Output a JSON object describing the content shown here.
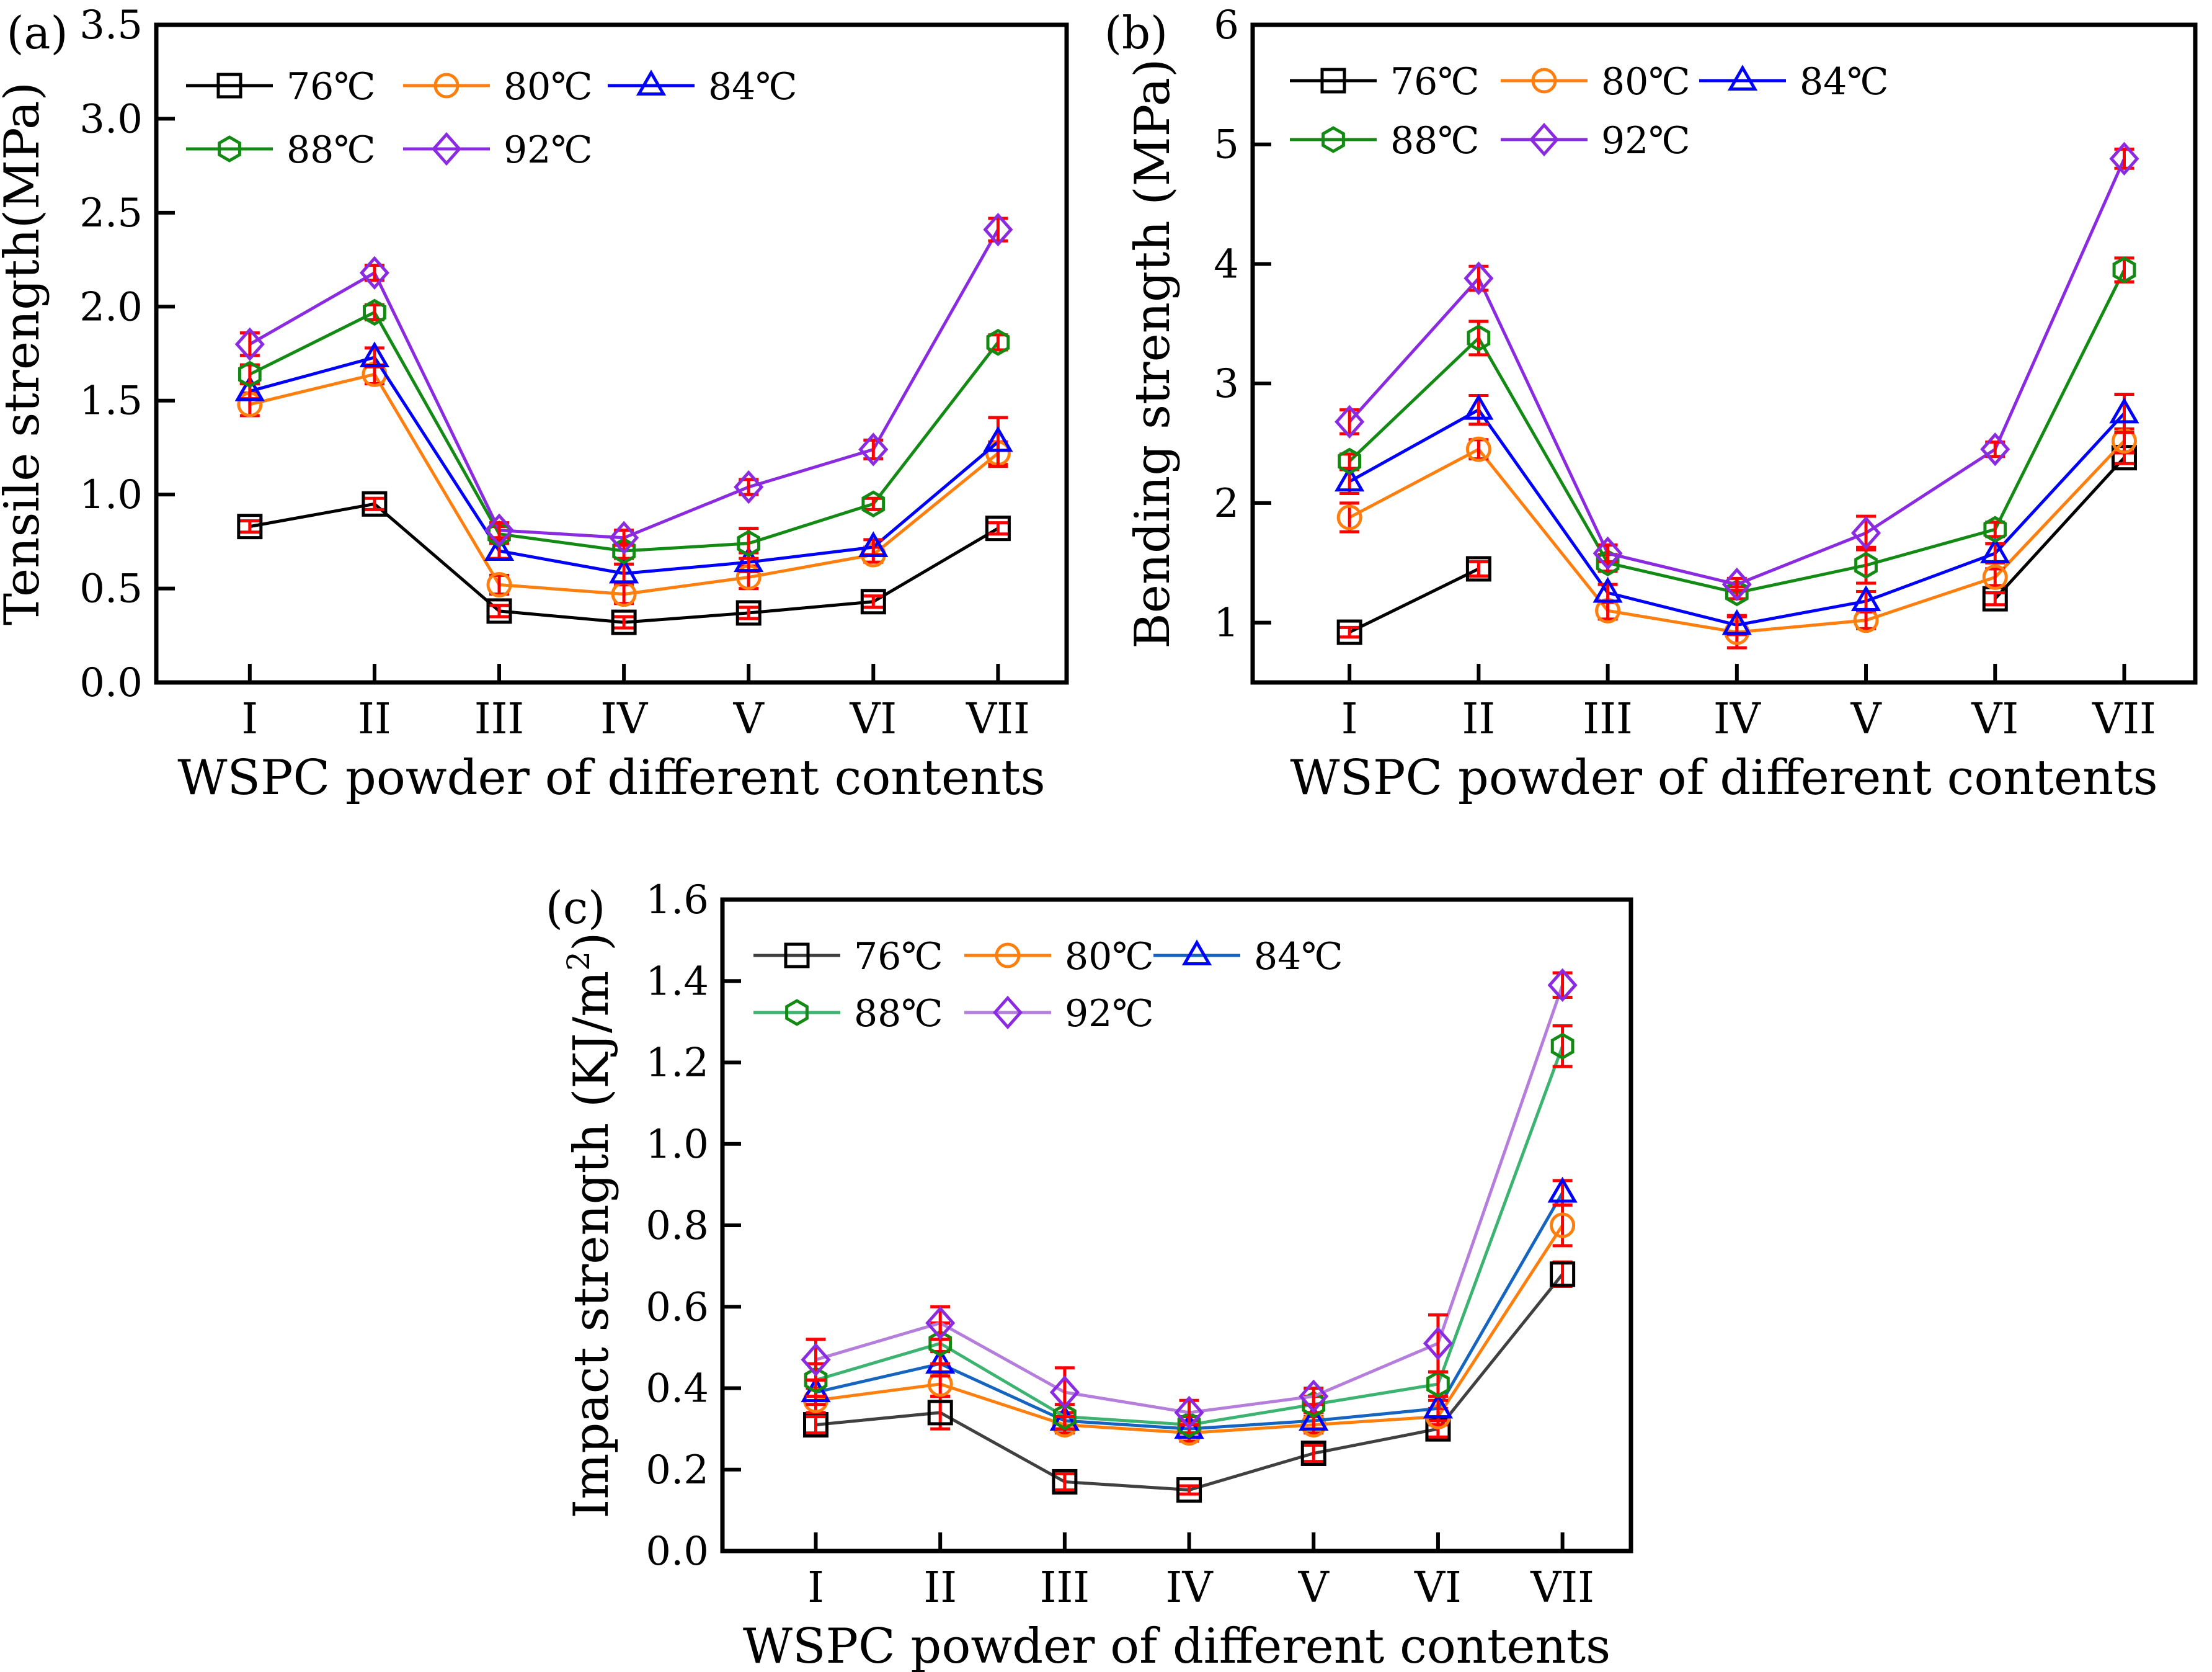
{
  "figure": {
    "x_categories": [
      "I",
      "II",
      "III",
      "IV",
      "V",
      "VI",
      "VII"
    ],
    "legend_labels": [
      "76℃",
      "80℃",
      "84℃",
      "88℃",
      "92℃"
    ]
  },
  "chart_data": [
    {
      "type": "line",
      "panel_label": "(a)",
      "xlabel": "WSPC powder of different contents",
      "ylabel": "Tensile strength(MPa)",
      "categories": [
        "I",
        "II",
        "III",
        "IV",
        "V",
        "VI",
        "VII"
      ],
      "ylim": [
        0.0,
        3.5
      ],
      "yticks": [
        "0.0",
        "0.5",
        "1.0",
        "1.5",
        "2.0",
        "2.5",
        "3.0",
        "3.5"
      ],
      "ytick_values": [
        0,
        0.5,
        1.0,
        1.5,
        2.0,
        2.5,
        3.0,
        3.5
      ],
      "series": [
        {
          "name": "76℃",
          "values": [
            0.83,
            0.95,
            0.38,
            0.32,
            0.37,
            0.43,
            0.82
          ],
          "errors": [
            0.03,
            0.03,
            0.03,
            0.03,
            0.03,
            0.03,
            0.03
          ]
        },
        {
          "name": "80℃",
          "values": [
            1.48,
            1.64,
            0.52,
            0.47,
            0.56,
            0.68,
            1.22
          ],
          "errors": [
            0.06,
            0.05,
            0.05,
            0.05,
            0.06,
            0.04,
            0.06
          ]
        },
        {
          "name": "84℃",
          "values": [
            1.55,
            1.73,
            0.7,
            0.58,
            0.64,
            0.72,
            1.28
          ],
          "errors": [
            0.04,
            0.05,
            0.04,
            0.05,
            0.05,
            0.04,
            0.13
          ]
        },
        {
          "name": "88℃",
          "values": [
            1.64,
            1.97,
            0.79,
            0.7,
            0.74,
            0.95,
            1.81
          ],
          "errors": [
            0.05,
            0.04,
            0.04,
            0.04,
            0.08,
            0.03,
            0.04
          ]
        },
        {
          "name": "92℃",
          "values": [
            1.8,
            2.18,
            0.81,
            0.77,
            1.04,
            1.24,
            2.41
          ],
          "errors": [
            0.06,
            0.04,
            0.04,
            0.04,
            0.04,
            0.05,
            0.06
          ]
        }
      ]
    },
    {
      "type": "line",
      "panel_label": "(b)",
      "xlabel": "WSPC powder of different contents",
      "ylabel": "Bending strength (MPa)",
      "categories": [
        "I",
        "II",
        "III",
        "IV",
        "V",
        "VI",
        "VII"
      ],
      "ylim": [
        0.5,
        6.0
      ],
      "yticks": [
        "1",
        "2",
        "3",
        "4",
        "5",
        "6"
      ],
      "ytick_values": [
        1,
        2,
        3,
        4,
        5,
        6
      ],
      "series": [
        {
          "name": "76℃",
          "values": [
            0.92,
            1.45,
            null,
            null,
            null,
            1.2,
            2.38
          ],
          "errors": [
            0.04,
            0.06,
            null,
            null,
            null,
            0.05,
            0.05
          ]
        },
        {
          "name": "80℃",
          "values": [
            1.88,
            2.45,
            1.1,
            0.92,
            1.02,
            1.38,
            2.52
          ],
          "errors": [
            0.12,
            0.08,
            0.07,
            0.13,
            0.07,
            0.07,
            0.1
          ]
        },
        {
          "name": "84℃",
          "values": [
            2.18,
            2.78,
            1.25,
            0.98,
            1.18,
            1.58,
            2.75
          ],
          "errors": [
            0.1,
            0.12,
            0.07,
            0.08,
            0.08,
            0.08,
            0.16
          ]
        },
        {
          "name": "88℃",
          "values": [
            2.35,
            3.38,
            1.5,
            1.25,
            1.48,
            1.78,
            3.95
          ],
          "errors": [
            0.06,
            0.14,
            0.07,
            0.05,
            0.15,
            0.06,
            0.1
          ]
        },
        {
          "name": "92℃",
          "values": [
            2.68,
            3.88,
            1.58,
            1.32,
            1.75,
            2.45,
            4.88
          ],
          "errors": [
            0.1,
            0.1,
            0.07,
            0.05,
            0.14,
            0.06,
            0.08
          ]
        }
      ]
    },
    {
      "type": "line",
      "panel_label": "(c)",
      "xlabel": "WSPC powder of different contents",
      "ylabel": "Impact strength (KJ/m2)",
      "ylabel_parts": {
        "main": "Impact strength (KJ/m",
        "superscript": "2",
        "end": ")"
      },
      "categories": [
        "I",
        "II",
        "III",
        "IV",
        "V",
        "VI",
        "VII"
      ],
      "ylim": [
        0.0,
        1.6
      ],
      "yticks": [
        "0.0",
        "0.2",
        "0.4",
        "0.6",
        "0.8",
        "1.0",
        "1.2",
        "1.4",
        "1.6"
      ],
      "ytick_values": [
        0,
        0.2,
        0.4,
        0.6,
        0.8,
        1.0,
        1.2,
        1.4,
        1.6
      ],
      "series": [
        {
          "name": "76℃",
          "values": [
            0.31,
            0.34,
            0.17,
            0.15,
            0.24,
            0.3,
            0.68
          ],
          "errors": [
            0.02,
            0.04,
            0.02,
            0.01,
            0.02,
            0.02,
            0.03
          ]
        },
        {
          "name": "80℃",
          "values": [
            0.37,
            0.41,
            0.31,
            0.29,
            0.31,
            0.33,
            0.8
          ],
          "errors": [
            0.03,
            0.03,
            0.02,
            0.02,
            0.02,
            0.02,
            0.05
          ]
        },
        {
          "name": "84℃",
          "values": [
            0.39,
            0.46,
            0.32,
            0.3,
            0.32,
            0.35,
            0.88
          ],
          "errors": [
            0.03,
            0.03,
            0.02,
            0.02,
            0.02,
            0.02,
            0.03
          ]
        },
        {
          "name": "88℃",
          "values": [
            0.42,
            0.51,
            0.33,
            0.31,
            0.36,
            0.41,
            1.24
          ],
          "errors": [
            0.04,
            0.05,
            0.03,
            0.02,
            0.02,
            0.03,
            0.05
          ]
        },
        {
          "name": "92℃",
          "values": [
            0.47,
            0.56,
            0.39,
            0.34,
            0.38,
            0.51,
            1.39
          ],
          "errors": [
            0.05,
            0.04,
            0.06,
            0.03,
            0.02,
            0.07,
            0.03
          ]
        }
      ]
    }
  ],
  "styles": {
    "series_colors_ab": [
      "#000000",
      "#ff7f0e",
      "#0000ff",
      "#138a13",
      "#8a2be2"
    ],
    "series_colors_c": [
      "#404040",
      "#ff7f0e",
      "#1565c0",
      "#3cb371",
      "#b57edc"
    ],
    "marker_colors_c": [
      "#000000",
      "#ff7f0e",
      "#0000ff",
      "#138a13",
      "#8a2be2"
    ],
    "error_color": "#ff0000",
    "markers": [
      "square",
      "circle",
      "triangle",
      "hexagon",
      "diamond"
    ]
  }
}
